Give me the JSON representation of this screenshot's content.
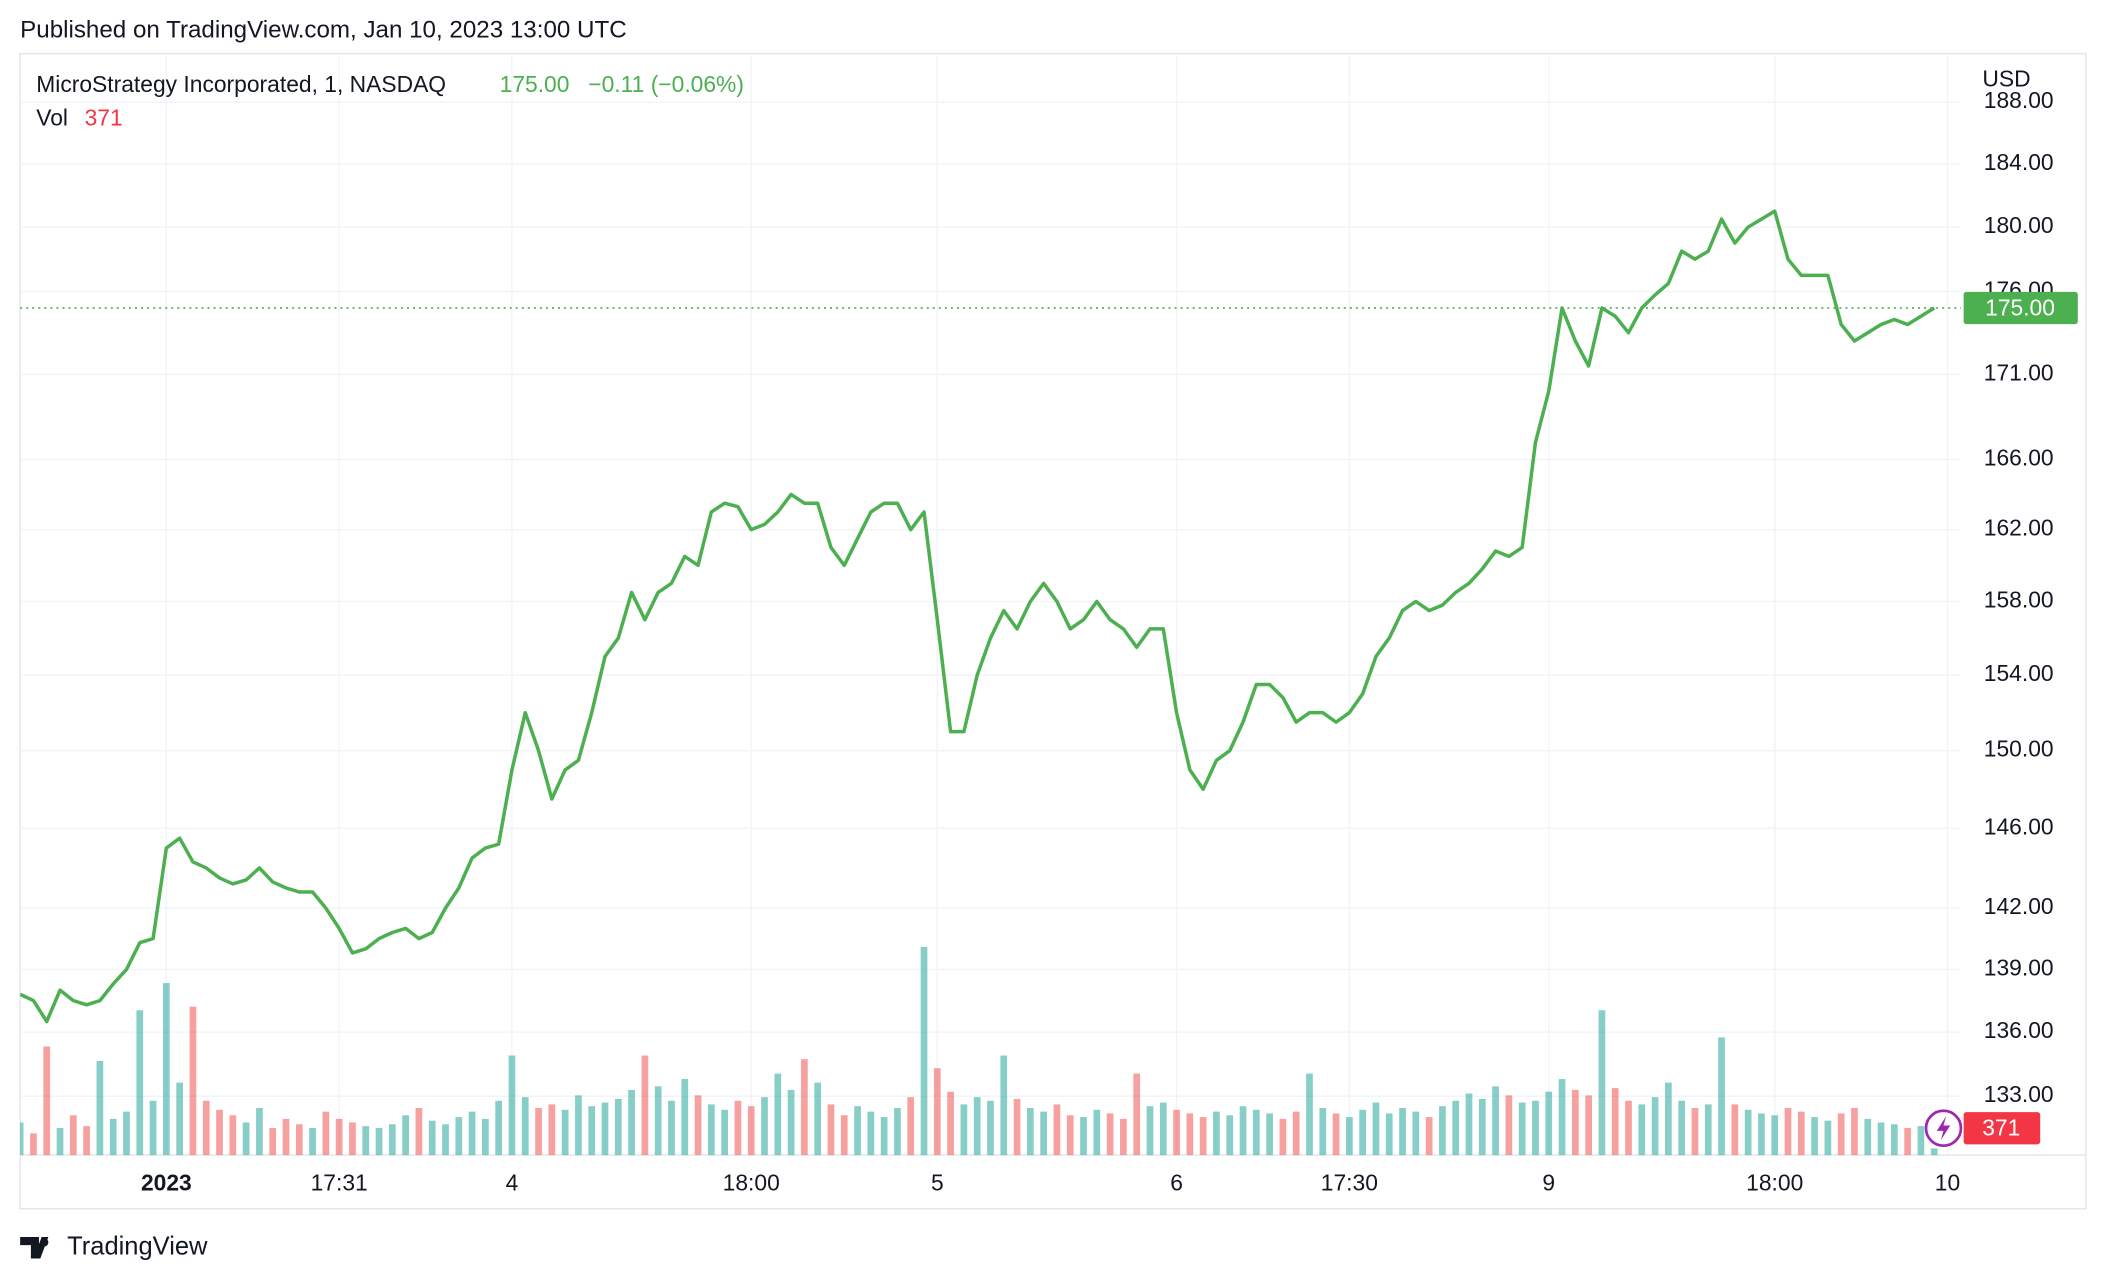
{
  "header": {
    "published": "Published on TradingView.com, Jan 10, 2023 13:00 UTC"
  },
  "footer": {
    "brand": "TradingView"
  },
  "chart_data": {
    "type": "line",
    "log": true,
    "grid": true,
    "currency": "USD",
    "last_label": "175.00",
    "change_label": "−0.11 (−0.06%)",
    "series": [
      {
        "name": "MicroStrategy Incorporated, 1, NASDAQ",
        "color": "#4caf50",
        "values": [
          137.8,
          137.5,
          136.5,
          138,
          137.5,
          137.3,
          137.5,
          138.3,
          139,
          140.3,
          140.5,
          145,
          145.5,
          144.3,
          144,
          143.5,
          143.2,
          143.4,
          144,
          143.3,
          143,
          142.8,
          142.8,
          142,
          141,
          139.8,
          140,
          140.5,
          140.8,
          141,
          140.5,
          140.8,
          142,
          143,
          144.5,
          145,
          145.2,
          149,
          152,
          150,
          147.5,
          149,
          149.5,
          152,
          155,
          156,
          158.5,
          157,
          158.5,
          159,
          160.5,
          160,
          163,
          163.5,
          163.3,
          162,
          162.3,
          163,
          164,
          163.5,
          163.5,
          161,
          160,
          161.5,
          163,
          163.5,
          163.5,
          162,
          163,
          157,
          151,
          151,
          154,
          156,
          157.5,
          156.5,
          158,
          159,
          158,
          156.5,
          157,
          158,
          157,
          156.5,
          155.5,
          156.5,
          156.5,
          152,
          149,
          148,
          149.5,
          150,
          151.5,
          153.5,
          153.5,
          152.8,
          151.5,
          152,
          152,
          151.5,
          152,
          153,
          155,
          156,
          157.5,
          158,
          157.5,
          157.8,
          158.5,
          159,
          159.8,
          160.8,
          160.5,
          161,
          167,
          170,
          175,
          173,
          171.5,
          175,
          174.5,
          173.5,
          175,
          175.8,
          176.5,
          178.5,
          178,
          178.5,
          180.5,
          179,
          180,
          180.5,
          181,
          178,
          177,
          177,
          177,
          174,
          173,
          173.5,
          174,
          174.3,
          174,
          174.5,
          175
        ]
      }
    ],
    "volume": {
      "name": "Vol",
      "up_color": "rgba(38,166,154,0.55)",
      "down_color": "rgba(239,83,80,0.55)",
      "values": [
        1800,
        1200,
        6000,
        1500,
        2200,
        1600,
        5200,
        2000,
        2400,
        8000,
        3000,
        9500,
        4000,
        8200,
        3000,
        2500,
        2200,
        1800,
        2600,
        1500,
        2000,
        1700,
        1500,
        2400,
        2000,
        1800,
        1600,
        1500,
        1700,
        2200,
        2600,
        1900,
        1700,
        2100,
        2400,
        2000,
        3000,
        5500,
        3200,
        2600,
        2800,
        2500,
        3300,
        2700,
        2900,
        3100,
        3600,
        5500,
        3800,
        3000,
        4200,
        3300,
        2800,
        2500,
        3000,
        2700,
        3200,
        4500,
        3600,
        5300,
        4000,
        2800,
        2200,
        2700,
        2400,
        2100,
        2600,
        3200,
        11500,
        4800,
        3500,
        2800,
        3200,
        3000,
        5500,
        3100,
        2600,
        2400,
        2800,
        2200,
        2100,
        2500,
        2300,
        2000,
        4500,
        2700,
        2900,
        2500,
        2300,
        2100,
        2400,
        2200,
        2700,
        2500,
        2300,
        2000,
        2400,
        4500,
        2600,
        2300,
        2100,
        2500,
        2900,
        2300,
        2600,
        2400,
        2100,
        2700,
        3000,
        3400,
        3100,
        3800,
        3300,
        2900,
        3000,
        3500,
        4200,
        3600,
        3300,
        8000,
        3700,
        3000,
        2800,
        3200,
        4000,
        3000,
        2600,
        2800,
        6500,
        2800,
        2500,
        2300,
        2200,
        2600,
        2400,
        2100,
        1900,
        2300,
        2600,
        2000,
        1800,
        1700,
        1500,
        1600,
        371
      ]
    },
    "xlim": [
      0,
      145
    ],
    "xticks": [
      {
        "value": 11,
        "label": "2023"
      },
      {
        "value": 24,
        "label": "17:31"
      },
      {
        "value": 37,
        "label": "4"
      },
      {
        "value": 55,
        "label": "18:00"
      },
      {
        "value": 69,
        "label": "5"
      },
      {
        "value": 87,
        "label": "6"
      },
      {
        "value": 100,
        "label": "17:30"
      },
      {
        "value": 115,
        "label": "9"
      },
      {
        "value": 132,
        "label": "18:00"
      },
      {
        "value": 145,
        "label": "10"
      }
    ],
    "ylim": [
      130.3,
      191.2
    ],
    "yticks": [
      {
        "value": 188,
        "label": "188.00"
      },
      {
        "value": 184,
        "label": "184.00"
      },
      {
        "value": 180,
        "label": "180.00"
      },
      {
        "value": 176,
        "label": "176.00"
      },
      {
        "value": 171,
        "label": "171.00"
      },
      {
        "value": 166,
        "label": "166.00"
      },
      {
        "value": 162,
        "label": "162.00"
      },
      {
        "value": 158,
        "label": "158.00"
      },
      {
        "value": 154,
        "label": "154.00"
      },
      {
        "value": 150,
        "label": "150.00"
      },
      {
        "value": 146,
        "label": "146.00"
      },
      {
        "value": 142,
        "label": "142.00"
      },
      {
        "value": 139,
        "label": "139.00"
      },
      {
        "value": 136,
        "label": "136.00"
      },
      {
        "value": 133,
        "label": "133.00"
      }
    ]
  }
}
